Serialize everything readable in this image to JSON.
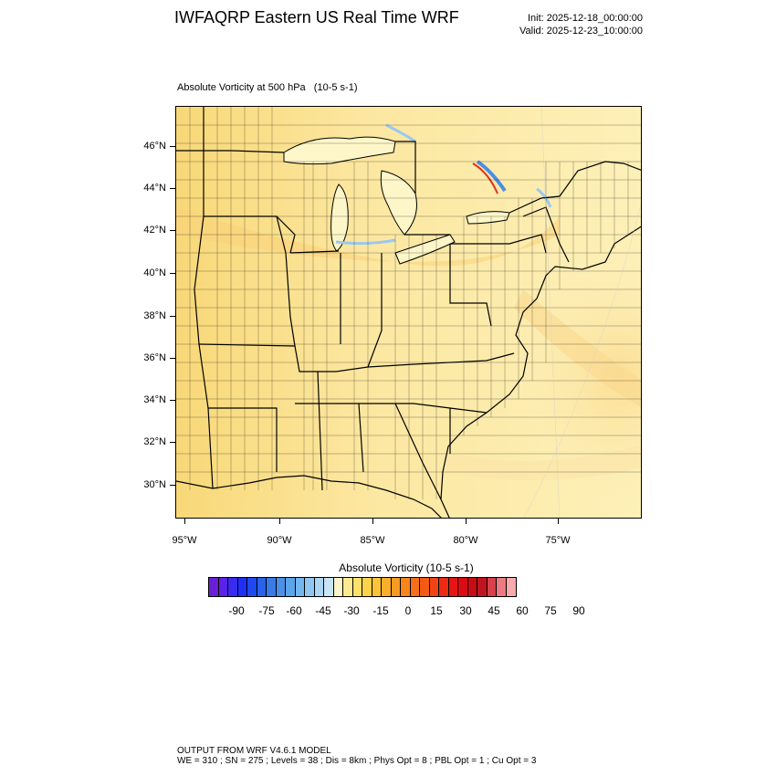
{
  "header": {
    "title": "IWFAQRP Eastern US Real Time WRF",
    "init": "Init: 2025-12-18_00:00:00",
    "valid": "Valid: 2025-12-23_10:00:00"
  },
  "field": {
    "label": "Absolute Vorticity at 500 hPa   (10-5 s-1)"
  },
  "map": {
    "lat_labels": [
      "46°N",
      "44°N",
      "42°N",
      "40°N",
      "38°N",
      "36°N",
      "34°N",
      "32°N",
      "30°N"
    ],
    "lon_labels": [
      "95°W",
      "90°W",
      "85°W",
      "80°W",
      "75°W"
    ],
    "land_color": "#fce9a0",
    "water_color": "#fdf6c8"
  },
  "colorbar": {
    "title": "Absolute Vorticity  (10-5 s-1)",
    "labels": [
      "-90",
      "-75",
      "-60",
      "-45",
      "-30",
      "-15",
      "0",
      "15",
      "30",
      "45",
      "60",
      "75",
      "90"
    ],
    "colors": [
      "#6a1fd6",
      "#5a22e6",
      "#3a2bef",
      "#1f2ff5",
      "#1f49f0",
      "#2a62ea",
      "#3a7ae6",
      "#4a90e6",
      "#5aa4ea",
      "#74b6ee",
      "#90c6f2",
      "#acd6f4",
      "#c8e4f7",
      "#fdf5c8",
      "#fcea90",
      "#fce06a",
      "#fbd24c",
      "#fbc23a",
      "#f9ae2c",
      "#f89a22",
      "#f7861c",
      "#f57018",
      "#f35a16",
      "#f04414",
      "#ed2a12",
      "#e61412",
      "#d80c12",
      "#c80c14",
      "#c01420",
      "#d8404a",
      "#ec7a80",
      "#f8aaac"
    ]
  },
  "footer": {
    "line1": "OUTPUT FROM WRF V4.6.1 MODEL",
    "line2": "WE = 310 ; SN = 275 ; Levels = 38 ; Dis = 8km ; Phys Opt = 8 ; PBL Opt = 1 ; Cu Opt = 3"
  }
}
